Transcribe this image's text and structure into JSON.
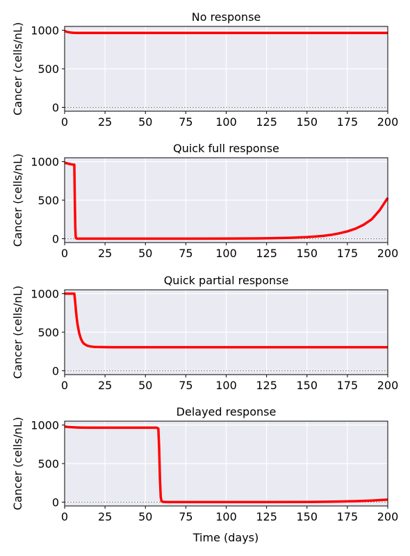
{
  "figure": {
    "xlabel": "Time (days)",
    "colors": {
      "line": "#ff0000",
      "plot_bg": "#eaeaf2",
      "grid": "#ffffff",
      "zero_line": "#808080"
    }
  },
  "chart_data": [
    {
      "type": "line",
      "title": "No response",
      "xlabel": "",
      "ylabel": "Cancer (cells/nL)",
      "xlim": [
        0,
        200
      ],
      "ylim": [
        -50,
        1050
      ],
      "xticks": [
        0,
        25,
        50,
        75,
        100,
        125,
        150,
        175,
        200
      ],
      "yticks": [
        0,
        500,
        1000
      ],
      "grid": true,
      "reference_line_y": 0,
      "series": [
        {
          "x": [
            0,
            1,
            2,
            3,
            4,
            5,
            6,
            8,
            10,
            15,
            20,
            50,
            100,
            150,
            200
          ],
          "y": [
            990,
            983,
            977,
            973,
            970,
            968,
            967,
            966,
            965,
            965,
            965,
            965,
            965,
            965,
            965
          ]
        }
      ]
    },
    {
      "type": "line",
      "title": "Quick full response",
      "xlabel": "",
      "ylabel": "Cancer (cells/nL)",
      "xlim": [
        0,
        200
      ],
      "ylim": [
        -50,
        1050
      ],
      "xticks": [
        0,
        25,
        50,
        75,
        100,
        125,
        150,
        175,
        200
      ],
      "yticks": [
        0,
        500,
        1000
      ],
      "grid": true,
      "reference_line_y": 0,
      "series": [
        {
          "x": [
            0,
            1,
            2,
            3,
            4,
            5,
            6,
            6.3,
            6.6,
            6.8,
            7,
            7.3,
            8,
            10,
            25,
            50,
            75,
            100,
            110,
            120,
            130,
            140,
            150,
            155,
            160,
            165,
            170,
            175,
            180,
            185,
            190,
            195,
            200
          ],
          "y": [
            985,
            980,
            975,
            970,
            965,
            962,
            960,
            500,
            150,
            40,
            10,
            3,
            1,
            1,
            1,
            1,
            1,
            2,
            3,
            4,
            7,
            12,
            21,
            28,
            37,
            50,
            70,
            95,
            130,
            180,
            250,
            370,
            530
          ]
        }
      ]
    },
    {
      "type": "line",
      "title": "Quick partial response",
      "xlabel": "",
      "ylabel": "Cancer (cells/nL)",
      "xlim": [
        0,
        200
      ],
      "ylim": [
        -50,
        1050
      ],
      "xticks": [
        0,
        25,
        50,
        75,
        100,
        125,
        150,
        175,
        200
      ],
      "yticks": [
        0,
        500,
        1000
      ],
      "grid": true,
      "reference_line_y": 0,
      "series": [
        {
          "x": [
            0,
            2,
            4,
            6,
            6.5,
            7,
            7.5,
            8,
            9,
            10,
            11,
            12,
            14,
            16,
            18,
            20,
            25,
            30,
            50,
            100,
            150,
            200
          ],
          "y": [
            1000,
            1000,
            1000,
            1000,
            900,
            780,
            680,
            600,
            490,
            420,
            375,
            350,
            325,
            315,
            310,
            308,
            306,
            305,
            305,
            305,
            305,
            305
          ]
        }
      ]
    },
    {
      "type": "line",
      "title": "Delayed response",
      "xlabel": "Time (days)",
      "ylabel": "Cancer (cells/nL)",
      "xlim": [
        0,
        200
      ],
      "ylim": [
        -50,
        1050
      ],
      "xticks": [
        0,
        25,
        50,
        75,
        100,
        125,
        150,
        175,
        200
      ],
      "yticks": [
        0,
        500,
        1000
      ],
      "grid": true,
      "reference_line_y": 0,
      "series": [
        {
          "x": [
            0,
            2,
            4,
            6,
            8,
            10,
            15,
            20,
            30,
            40,
            50,
            57,
            58,
            58.5,
            59,
            59.5,
            60,
            61,
            63,
            75,
            100,
            125,
            150,
            160,
            170,
            180,
            190,
            200
          ],
          "y": [
            980,
            975,
            972,
            970,
            968,
            967,
            966,
            965,
            965,
            965,
            965,
            965,
            955,
            700,
            300,
            60,
            12,
            3,
            1,
            1,
            1,
            1,
            2,
            4,
            7,
            12,
            20,
            32
          ]
        }
      ]
    }
  ]
}
